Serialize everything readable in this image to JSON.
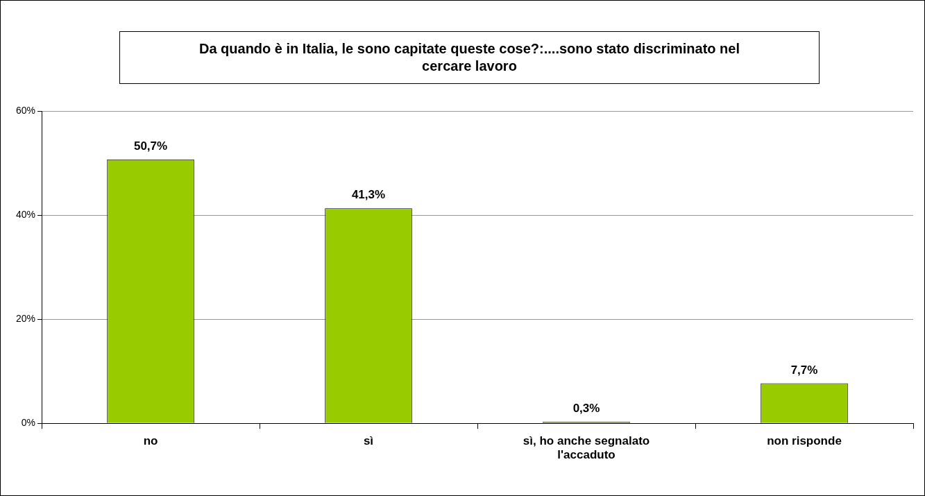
{
  "chart_data": {
    "type": "bar",
    "title": "Da quando è in Italia, le sono capitate queste cose?:....sono stato discriminato nel cercare lavoro",
    "categories": [
      "no",
      "sì",
      "sì, ho anche segnalato l'accaduto",
      "non risponde"
    ],
    "values": [
      50.7,
      41.3,
      0.3,
      7.7
    ],
    "value_labels": [
      "50,7%",
      "41,3%",
      "0,3%",
      "7,7%"
    ],
    "color": "#99cc00",
    "ylim": [
      0,
      60
    ],
    "yticks": [
      {
        "value": 0,
        "label": "0%"
      },
      {
        "value": 20,
        "label": "20%"
      },
      {
        "value": 40,
        "label": "40%"
      },
      {
        "value": 60,
        "label": "60%"
      }
    ],
    "grid": "y",
    "legend": false
  }
}
